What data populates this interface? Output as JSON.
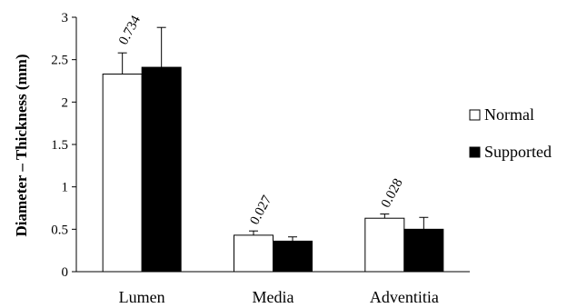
{
  "chart_data": {
    "type": "bar",
    "categories": [
      "Lumen",
      "Media",
      "Adventitia"
    ],
    "series": [
      {
        "name": "Normal",
        "values": [
          2.33,
          0.43,
          0.63
        ],
        "errors": [
          0.25,
          0.05,
          0.05
        ],
        "color": "#ffffff"
      },
      {
        "name": "Supported",
        "values": [
          2.41,
          0.36,
          0.5
        ],
        "errors": [
          0.47,
          0.05,
          0.14
        ],
        "color": "#000000"
      }
    ],
    "annotations": [
      "0.734",
      "0.027",
      "0.028"
    ],
    "ylabel": "Diameter – Thickness (mm)",
    "xlabel": "",
    "ylim": [
      0,
      3
    ],
    "yticks": [
      "0",
      "0.5",
      "1",
      "1.5",
      "2",
      "2.5",
      "3"
    ],
    "grid": false,
    "legend": "right"
  }
}
